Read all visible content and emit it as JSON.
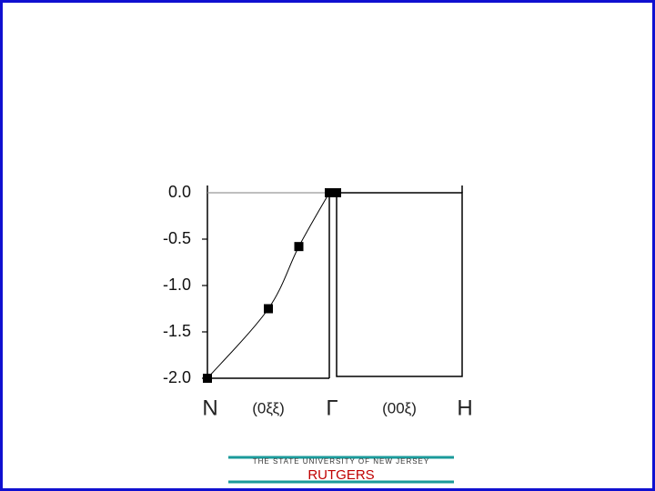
{
  "chart_data": [
    {
      "type": "scatter",
      "x": [
        0,
        0.5,
        0.75,
        1
      ],
      "values": [
        -2.0,
        -1.25,
        -0.58,
        0.0
      ],
      "color": "#000000",
      "curve": true,
      "xlim": [
        0,
        1
      ],
      "ylim": [
        -2.0,
        0.0
      ],
      "xticks": [
        {
          "value": 0,
          "label": "N"
        },
        {
          "value": 0.5,
          "label": "(0ξξ)"
        },
        {
          "value": 1,
          "label": "Γ"
        }
      ],
      "yticks": [
        {
          "value": 0,
          "label": "0.0"
        },
        {
          "value": -0.5,
          "label": "-0.5"
        },
        {
          "value": -1.0,
          "label": "-1.0"
        },
        {
          "value": -1.5,
          "label": "-1.5"
        },
        {
          "value": -2.0,
          "label": "-2.0"
        }
      ]
    },
    {
      "type": "scatter",
      "x": [
        0
      ],
      "values": [
        0.0
      ],
      "color": "#000000",
      "xlim": [
        0,
        1
      ],
      "ylim": [
        -2.0,
        0.0
      ],
      "xticks": [
        {
          "value": 0.5,
          "label": "(00ξ)"
        },
        {
          "value": 1,
          "label": "H"
        }
      ]
    }
  ],
  "footer": {
    "university": "THE STATE UNIVERSITY OF NEW JERSEY",
    "name": "RUTGERS"
  }
}
